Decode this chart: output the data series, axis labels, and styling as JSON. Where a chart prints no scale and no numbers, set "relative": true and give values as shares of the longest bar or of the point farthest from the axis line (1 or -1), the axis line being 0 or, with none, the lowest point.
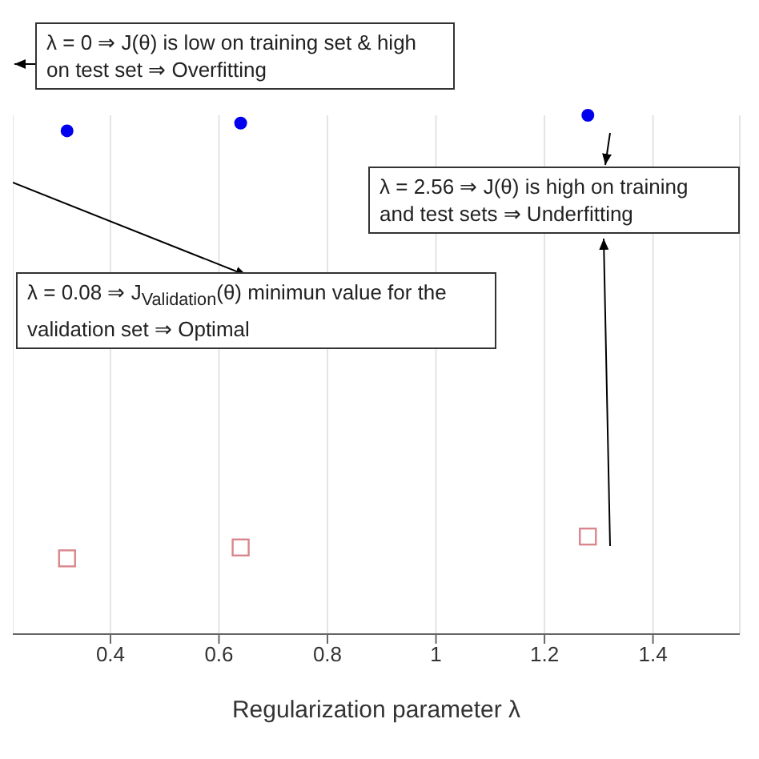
{
  "chart_data": {
    "type": "scatter",
    "xlabel": "Regularization parameter λ",
    "x": [
      0.32,
      0.64,
      1.28
    ],
    "relative": true,
    "xlim": [
      0.22,
      1.56
    ],
    "xticks": [
      0.4,
      0.6,
      0.8,
      1,
      1.2,
      1.4
    ],
    "grid": "x",
    "legend": false,
    "series": [
      {
        "color": "#0000ee",
        "marker": "circle",
        "values": [
          0.97,
          0.985,
          1
        ]
      },
      {
        "color": "#d9868c",
        "marker": "square",
        "values": [
          0.146,
          0.167,
          0.188
        ]
      }
    ],
    "annotations": [
      "λ = 0 ⇒ J(θ) is low on training set & high on test set ⇒ Overfitting",
      "λ = 2.56 ⇒ J(θ) is high on training and test sets ⇒ Underfitting",
      "λ = 0.08 ⇒ J$_{Validation}$(θ) minimun value for the validation set ⇒ Optimal"
    ]
  }
}
